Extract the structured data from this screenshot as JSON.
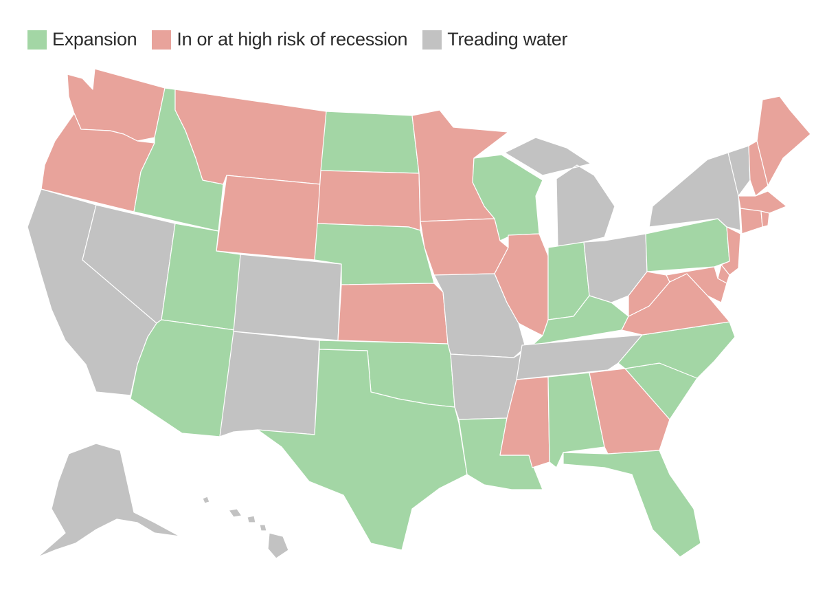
{
  "legend": [
    {
      "key": "expansion",
      "label": "Expansion",
      "color": "#a3d6a5"
    },
    {
      "key": "recession",
      "label": "In or at high risk of recession",
      "color": "#e8a39b"
    },
    {
      "key": "treading",
      "label": "Treading water",
      "color": "#c2c2c2"
    }
  ],
  "states": {
    "WA": "recession",
    "OR": "recession",
    "CA": "treading",
    "ID": "expansion",
    "NV": "treading",
    "MT": "recession",
    "WY": "recession",
    "UT": "expansion",
    "AZ": "expansion",
    "CO": "treading",
    "NM": "treading",
    "ND": "expansion",
    "SD": "recession",
    "NE": "expansion",
    "KS": "recession",
    "OK": "expansion",
    "TX": "expansion",
    "MN": "recession",
    "IA": "recession",
    "MO": "treading",
    "AR": "treading",
    "LA": "expansion",
    "WI": "expansion",
    "IL": "recession",
    "MI": "treading",
    "IN": "expansion",
    "OH": "treading",
    "KY": "expansion",
    "TN": "treading",
    "MS": "recession",
    "AL": "expansion",
    "GA": "recession",
    "FL": "expansion",
    "SC": "expansion",
    "NC": "expansion",
    "VA": "recession",
    "WV": "recession",
    "PA": "expansion",
    "NY": "treading",
    "VT": "treading",
    "NH": "recession",
    "ME": "recession",
    "MA": "recession",
    "CT": "recession",
    "RI": "recession",
    "NJ": "recession",
    "DE": "recession",
    "MD": "recession",
    "AK": "treading",
    "HI": "treading"
  }
}
